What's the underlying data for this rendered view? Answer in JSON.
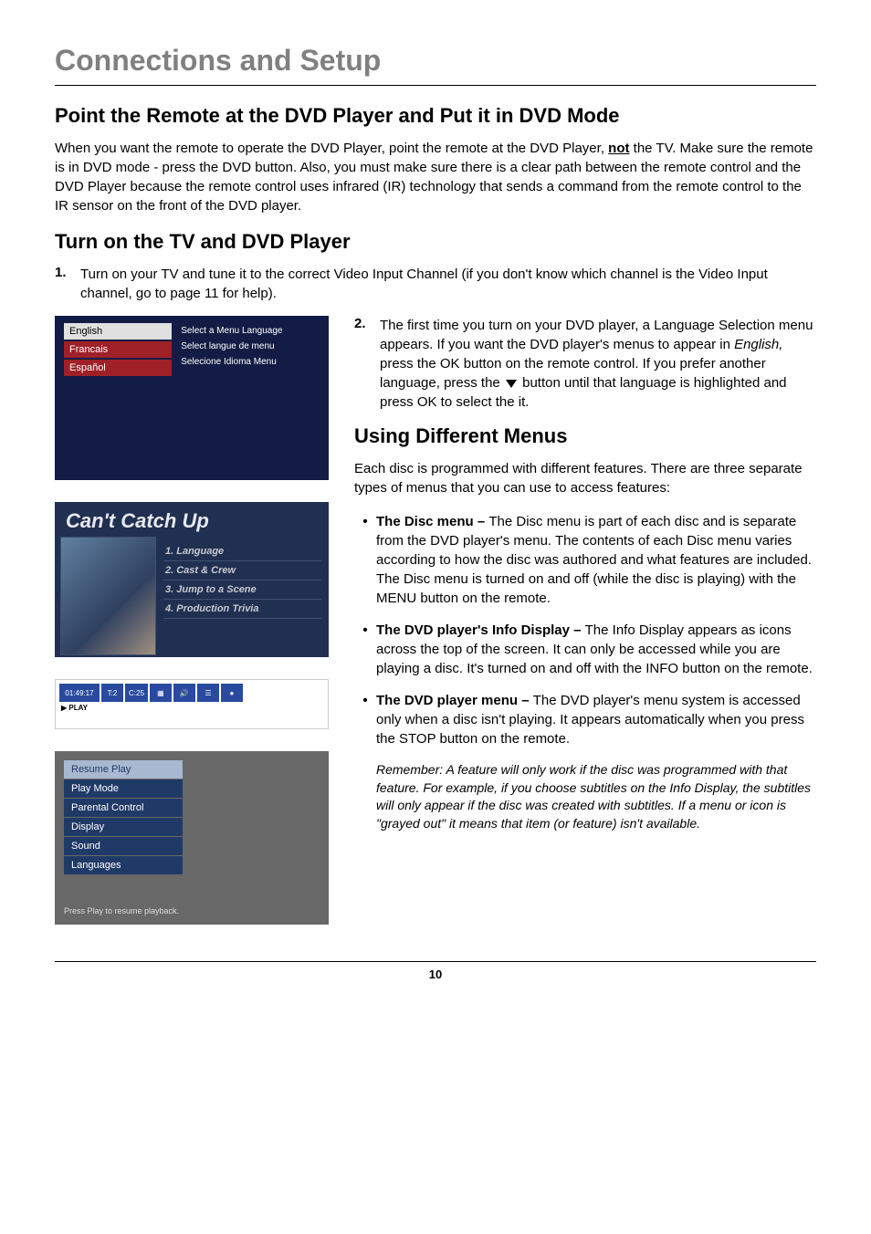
{
  "page": {
    "title": "Connections and Setup",
    "footer_page": "10"
  },
  "sec1": {
    "heading": "Point the Remote at the DVD Player and Put it in DVD Mode",
    "body_a": "When you want the remote to operate the DVD Player, point the remote at the DVD Player, ",
    "body_not": "not",
    "body_b": " the TV. Make sure the remote is in DVD mode - press the DVD button. Also, you must make sure there is a clear path between the remote control and the DVD Player because the remote control uses infrared (IR) technology that sends a command from the remote control to the IR sensor on the front of the DVD player."
  },
  "sec2": {
    "heading": "Turn on the TV and DVD Player",
    "step1_num": "1.",
    "step1_txt": "Turn on your TV and tune it to the correct Video Input Channel (if you don't know which channel is the Video Input channel, go to page 11 for help).",
    "step2_num": "2.",
    "step2_a": "The first time you turn on your DVD player, a Language Selection menu appears. If you want the DVD player's menus to appear in ",
    "step2_english": "English,",
    "step2_b": " press the OK button on the remote control. If you prefer another language, press the ",
    "step2_c": " button until that language is highlighted and press OK to select the it."
  },
  "sec3": {
    "heading": "Using Different Menus",
    "intro": "Each disc is programmed with different features. There are three separate types of menus that you can use to access features:",
    "b1_label": "The Disc menu – ",
    "b1_txt": "The Disc menu is part of each disc and is separate from the DVD player's menu. The contents of each Disc menu varies according to how the disc was authored and what features are included. The Disc menu is turned on and off (while the disc is playing) with the MENU button on the remote.",
    "b2_label": "The DVD player's Info Display – ",
    "b2_txt": "The Info Display appears as icons across the top of the screen. It can only be accessed while you are playing a disc. It's turned on and off with the INFO button on the remote.",
    "b3_label": "The DVD player menu – ",
    "b3_txt": "The DVD player's menu system is accessed only when a disc isn't playing. It appears automatically when you press the STOP button on the remote.",
    "note": "Remember: A feature will only work if the disc was programmed with that feature. For example, if you choose subtitles on the Info Display, the subtitles will only appear if the disc was created with subtitles. If a menu or icon is \"grayed out\" it means that item (or feature) isn't available."
  },
  "langbox": {
    "items": [
      "English",
      "Francais",
      "Español"
    ],
    "labels": [
      "Select a Menu Language",
      "Select langue de menu",
      "Selecione Idioma Menu"
    ]
  },
  "catchup": {
    "title": "Can't Catch Up",
    "items": [
      "1. Language",
      "2. Cast & Crew",
      "3. Jump to a Scene",
      "4. Production Trivia"
    ]
  },
  "infobar": {
    "time": "01:49:17",
    "t": "T:2",
    "c": "C:25",
    "play": "▶ PLAY"
  },
  "playermenu": {
    "items": [
      "Resume Play",
      "Play Mode",
      "Parental Control",
      "Display",
      "Sound",
      "Languages"
    ],
    "footer": "Press Play to resume playback."
  }
}
